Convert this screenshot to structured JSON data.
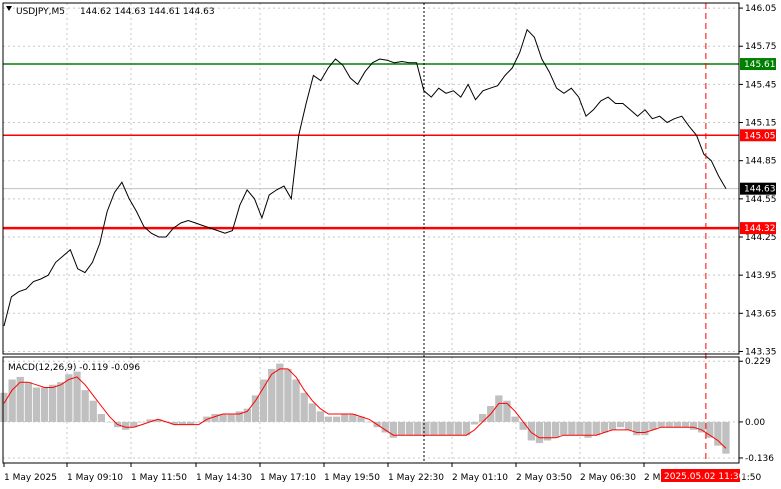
{
  "symbol_info": {
    "symbol": "USDJPY,M5",
    "ohlc": "144.62 144.63 144.61 144.63"
  },
  "macd_info": {
    "label": "MACD(12,26,9) -0.119 -0.096"
  },
  "colors": {
    "price_line": "#000000",
    "support_resistance": "#ff0000",
    "target_line": "#008000",
    "macd_hist": "#c0c0c0",
    "macd_signal": "#ff0000",
    "grid": "#c8c8c8",
    "current_price_label": "#000000"
  },
  "chart_data": [
    {
      "type": "line",
      "title": "USDJPY,M5",
      "ylim": [
        143.33,
        146.09
      ],
      "y_ticks": [
        "146.05",
        "145.75",
        "145.45",
        "145.15",
        "144.85",
        "144.55",
        "144.25",
        "143.95",
        "143.65",
        "143.35"
      ],
      "x_ticks": [
        "1 May 2025",
        "1 May 09:10",
        "1 May 11:50",
        "1 May 14:30",
        "1 May 17:10",
        "1 May 19:50",
        "1 May 22:30",
        "2 May 01:10",
        "2 May 03:50",
        "2 May 06:30",
        "2 M"
      ],
      "series": [
        {
          "values": [
            143.55,
            143.78,
            143.82,
            143.84,
            143.9,
            143.92,
            143.95,
            144.05,
            144.1,
            144.15,
            144.0,
            143.97,
            144.05,
            144.2,
            144.45,
            144.6,
            144.68,
            144.55,
            144.45,
            144.33,
            144.28,
            144.25,
            144.25,
            144.32,
            144.36,
            144.38,
            144.36,
            144.34,
            144.32,
            144.3,
            144.28,
            144.3,
            144.5,
            144.62,
            144.55,
            144.4,
            144.58,
            144.62,
            144.65,
            144.55,
            145.05,
            145.3,
            145.52,
            145.48,
            145.58,
            145.65,
            145.6,
            145.5,
            145.45,
            145.55,
            145.62,
            145.65,
            145.64,
            145.62,
            145.63,
            145.62,
            145.62,
            145.4,
            145.35,
            145.42,
            145.38,
            145.4,
            145.35,
            145.45,
            145.33,
            145.4,
            145.42,
            145.44,
            145.52,
            145.58,
            145.7,
            145.88,
            145.82,
            145.65,
            145.55,
            145.42,
            145.38,
            145.42,
            145.35,
            145.2,
            145.25,
            145.32,
            145.35,
            145.3,
            145.3,
            145.25,
            145.2,
            145.25,
            145.18,
            145.2,
            145.15,
            145.18,
            145.2,
            145.12,
            145.05,
            144.9,
            144.85,
            144.73,
            144.63
          ]
        }
      ],
      "horizontal_lines": [
        {
          "label": "145.61",
          "value": 145.61,
          "color": "#008000"
        },
        {
          "label": "145.05",
          "value": 145.05,
          "color": "#ff0000"
        },
        {
          "label": "144.32",
          "value": 144.32,
          "color": "#ff0000"
        }
      ],
      "current_price": {
        "label": "144.63",
        "value": 144.63
      },
      "vertical_marker": {
        "label": "2025.05.02 11:30",
        "position_fraction": 0.955
      }
    },
    {
      "type": "bar",
      "title": "MACD(12,26,9) -0.119 -0.096",
      "ylim": [
        -0.155,
        0.245
      ],
      "y_ticks": [
        "0.229",
        "0.00",
        "-0.136"
      ],
      "series": [
        {
          "name": "MACD",
          "values": [
            0.11,
            0.16,
            0.17,
            0.15,
            0.13,
            0.13,
            0.14,
            0.15,
            0.18,
            0.19,
            0.12,
            0.08,
            0.03,
            0.0,
            -0.02,
            -0.03,
            -0.02,
            0.0,
            0.01,
            0.01,
            0.0,
            -0.01,
            -0.01,
            -0.01,
            0.0,
            0.02,
            0.03,
            0.03,
            0.03,
            0.04,
            0.05,
            0.1,
            0.16,
            0.2,
            0.22,
            0.2,
            0.16,
            0.11,
            0.07,
            0.04,
            0.02,
            0.02,
            0.03,
            0.03,
            0.02,
            0.0,
            -0.02,
            -0.04,
            -0.06,
            -0.05,
            -0.05,
            -0.05,
            -0.05,
            -0.05,
            -0.05,
            -0.05,
            -0.05,
            -0.05,
            -0.01,
            0.03,
            0.06,
            0.1,
            0.08,
            0.02,
            -0.03,
            -0.07,
            -0.08,
            -0.07,
            -0.06,
            -0.05,
            -0.05,
            -0.05,
            -0.06,
            -0.05,
            -0.04,
            -0.03,
            -0.02,
            -0.03,
            -0.05,
            -0.05,
            -0.03,
            -0.02,
            -0.02,
            -0.02,
            -0.02,
            -0.03,
            -0.04,
            -0.06,
            -0.09,
            -0.12
          ]
        },
        {
          "name": "Signal",
          "values": [
            0.07,
            0.12,
            0.15,
            0.15,
            0.14,
            0.13,
            0.13,
            0.14,
            0.16,
            0.17,
            0.14,
            0.1,
            0.06,
            0.02,
            -0.01,
            -0.02,
            -0.02,
            -0.01,
            0.0,
            0.01,
            0.0,
            -0.01,
            -0.01,
            -0.01,
            -0.01,
            0.01,
            0.02,
            0.03,
            0.03,
            0.03,
            0.04,
            0.08,
            0.13,
            0.18,
            0.2,
            0.2,
            0.17,
            0.12,
            0.08,
            0.05,
            0.03,
            0.03,
            0.03,
            0.03,
            0.02,
            0.01,
            -0.01,
            -0.03,
            -0.05,
            -0.05,
            -0.05,
            -0.05,
            -0.05,
            -0.05,
            -0.05,
            -0.05,
            -0.05,
            -0.05,
            -0.03,
            0.0,
            0.03,
            0.07,
            0.07,
            0.04,
            0.0,
            -0.04,
            -0.06,
            -0.06,
            -0.06,
            -0.05,
            -0.05,
            -0.05,
            -0.05,
            -0.05,
            -0.04,
            -0.03,
            -0.03,
            -0.03,
            -0.04,
            -0.04,
            -0.03,
            -0.02,
            -0.02,
            -0.02,
            -0.02,
            -0.02,
            -0.03,
            -0.05,
            -0.07,
            -0.1
          ]
        }
      ]
    }
  ]
}
